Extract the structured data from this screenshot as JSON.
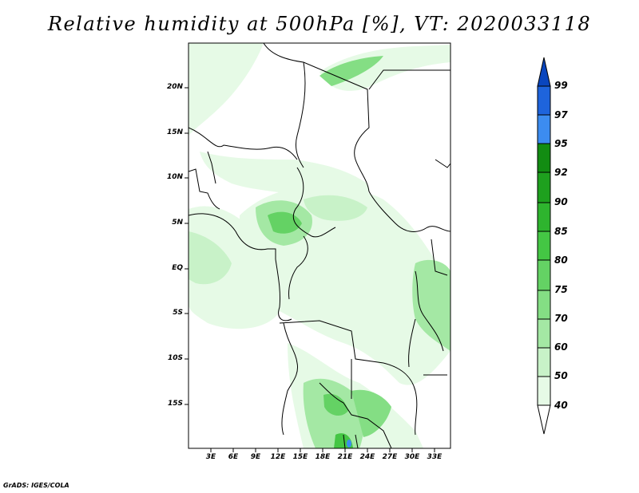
{
  "title": "Relative humidity at 500hPa [%], VT: 2020033118",
  "credit": "GrADS: IGES/COLA",
  "map": {
    "lat_labels": [
      "20N",
      "15N",
      "10N",
      "5N",
      "EQ",
      "5S",
      "10S",
      "15S"
    ],
    "lon_labels": [
      "3E",
      "6E",
      "9E",
      "12E",
      "15E",
      "18E",
      "21E",
      "24E",
      "27E",
      "30E",
      "33E"
    ]
  },
  "colorbar": {
    "levels": [
      "40",
      "50",
      "60",
      "70",
      "75",
      "80",
      "85",
      "90",
      "92",
      "95",
      "97",
      "99"
    ],
    "colors": [
      "#ffffff",
      "#e6fae6",
      "#c8f2c8",
      "#a4e8a4",
      "#84de84",
      "#64d264",
      "#44c644",
      "#2eb42e",
      "#1ea01e",
      "#128c12",
      "#3c8cf0",
      "#1e64dc",
      "#0a46be"
    ]
  }
}
